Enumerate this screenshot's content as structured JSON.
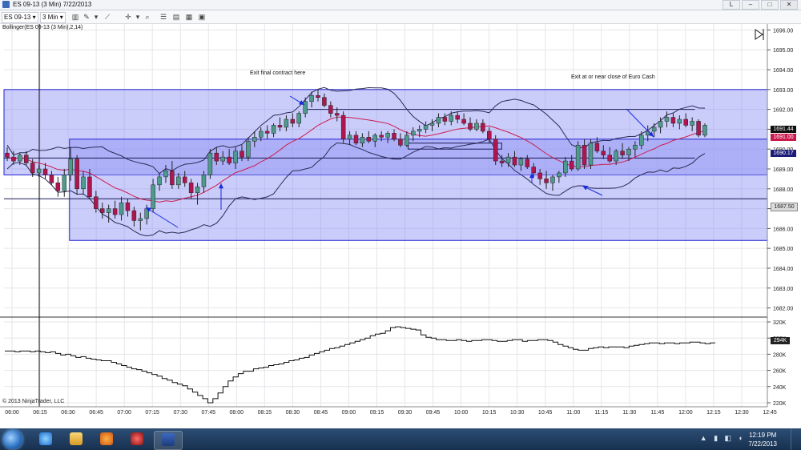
{
  "window": {
    "title": "ES 09-13 (3 Min)  7/22/2013",
    "buttons": [
      "L",
      "–",
      "□",
      "✕"
    ]
  },
  "toolbar": {
    "instrument": "ES 09-13",
    "interval": "3 Min",
    "icons": [
      "chart-style-icon",
      "drawing-tool-icon",
      "crosshair-icon",
      "zoom-icon",
      "properties-icon",
      "indicators-icon",
      "strategies-icon",
      "data-box-icon"
    ]
  },
  "chart": {
    "indicator_label": "Bollinger(ES 09-13 (3 Min),2,14)",
    "copyright": "© 2013 NinjaTrader, LLC",
    "annotations": [
      "Exit final contract here",
      "Exit at or near close of Euro Cash"
    ],
    "price_badges": [
      "1691.44",
      "1691.00",
      "1690.17",
      "1687.50"
    ],
    "colors": {
      "zone": "#8a8ef5",
      "zone_border": "#2222cc",
      "bull": "#4e9a8d",
      "bear": "#b0154f",
      "mid": "#cc1d4f",
      "band": "#2a2a55",
      "arrow": "#1a2bdc"
    }
  },
  "taskbar": {
    "time": "12:19 PM",
    "date": "7/22/2013",
    "apps": [
      "ie-icon",
      "explorer-icon",
      "media-player-icon",
      "recorder-icon",
      "ninjatrader-icon"
    ]
  },
  "chart_data": {
    "type": "candlestick",
    "x_ticks": [
      "06:00",
      "06:15",
      "06:30",
      "06:45",
      "07:00",
      "07:15",
      "07:30",
      "07:45",
      "08:00",
      "08:15",
      "08:30",
      "08:45",
      "09:00",
      "09:15",
      "09:30",
      "09:45",
      "10:00",
      "10:15",
      "10:30",
      "10:45",
      "11:00",
      "11:15",
      "11:30",
      "11:45",
      "12:00",
      "12:15",
      "12:30",
      "12:45"
    ],
    "y_ticks": [
      "1696.00",
      "1695.00",
      "1694.00",
      "1693.00",
      "1692.00",
      "1691.00",
      "1690.00",
      "1689.00",
      "1688.00",
      "1687.00",
      "1686.00",
      "1685.00",
      "1684.00",
      "1683.00",
      "1682.00"
    ],
    "ylim": [
      1681.7,
      1696.3
    ],
    "volume_ticks": [
      "320K",
      "300K",
      "280K",
      "260K",
      "240K",
      "220K"
    ],
    "volume_ylim": [
      215000,
      324000
    ],
    "zones": [
      {
        "from_time": "06:00",
        "to_time": "12:50",
        "low": 1688.7,
        "high": 1693.0
      },
      {
        "from_time": "06:35",
        "to_time": "12:50",
        "low": 1685.4,
        "high": 1690.5
      }
    ],
    "levels": [
      {
        "price": 1692.0,
        "from_time": "08:40",
        "to_time": "12:05"
      },
      {
        "price": 1689.55,
        "from_time": "06:00",
        "to_time": "12:05"
      },
      {
        "price": 1687.5,
        "from_time": "06:00",
        "to_time": "12:50"
      }
    ],
    "candles": [
      [
        1689.8,
        1690.1,
        1689.4,
        1689.6
      ],
      [
        1689.6,
        1689.9,
        1689.2,
        1689.4
      ],
      [
        1689.4,
        1689.8,
        1689.2,
        1689.7
      ],
      [
        1689.7,
        1689.9,
        1689.2,
        1689.3
      ],
      [
        1689.3,
        1689.5,
        1688.6,
        1688.8
      ],
      [
        1688.8,
        1689.2,
        1688.6,
        1689.0
      ],
      [
        1689.0,
        1689.3,
        1688.5,
        1688.7
      ],
      [
        1688.7,
        1688.9,
        1688.2,
        1688.3
      ],
      [
        1688.3,
        1688.6,
        1687.6,
        1687.9
      ],
      [
        1687.9,
        1689.0,
        1687.6,
        1688.7
      ],
      [
        1688.7,
        1690.1,
        1688.4,
        1689.5
      ],
      [
        1689.5,
        1689.7,
        1687.7,
        1688.0
      ],
      [
        1688.0,
        1688.9,
        1687.7,
        1688.6
      ],
      [
        1688.6,
        1689.0,
        1687.5,
        1687.6
      ],
      [
        1687.6,
        1687.9,
        1686.8,
        1687.0
      ],
      [
        1687.0,
        1687.3,
        1686.5,
        1686.8
      ],
      [
        1686.8,
        1687.2,
        1686.3,
        1687.0
      ],
      [
        1687.0,
        1687.4,
        1686.5,
        1686.7
      ],
      [
        1686.7,
        1687.6,
        1686.4,
        1687.3
      ],
      [
        1687.3,
        1687.5,
        1686.6,
        1686.9
      ],
      [
        1686.9,
        1687.1,
        1686.1,
        1686.4
      ],
      [
        1686.4,
        1686.8,
        1685.9,
        1686.5
      ],
      [
        1686.5,
        1687.2,
        1686.2,
        1687.0
      ],
      [
        1687.0,
        1688.5,
        1686.8,
        1688.2
      ],
      [
        1688.2,
        1688.8,
        1687.9,
        1688.6
      ],
      [
        1688.6,
        1689.2,
        1688.3,
        1688.9
      ],
      [
        1688.9,
        1689.4,
        1688.0,
        1688.2
      ],
      [
        1688.2,
        1688.8,
        1688.0,
        1688.6
      ],
      [
        1688.6,
        1688.9,
        1688.1,
        1688.3
      ],
      [
        1688.3,
        1688.5,
        1687.5,
        1687.8
      ],
      [
        1687.8,
        1688.3,
        1687.2,
        1688.1
      ],
      [
        1688.1,
        1688.9,
        1687.8,
        1688.7
      ],
      [
        1688.7,
        1690.0,
        1688.5,
        1689.8
      ],
      [
        1689.8,
        1690.1,
        1689.2,
        1689.4
      ],
      [
        1689.4,
        1689.9,
        1689.2,
        1689.6
      ],
      [
        1689.6,
        1690.0,
        1689.2,
        1689.3
      ],
      [
        1689.3,
        1690.1,
        1689.0,
        1689.9
      ],
      [
        1689.9,
        1690.2,
        1689.4,
        1689.6
      ],
      [
        1689.6,
        1690.6,
        1689.4,
        1690.4
      ],
      [
        1690.4,
        1690.9,
        1690.1,
        1690.6
      ],
      [
        1690.6,
        1691.1,
        1690.4,
        1690.9
      ],
      [
        1690.9,
        1691.2,
        1690.5,
        1690.8
      ],
      [
        1690.8,
        1691.3,
        1690.6,
        1691.2
      ],
      [
        1691.2,
        1691.6,
        1690.9,
        1691.1
      ],
      [
        1691.1,
        1691.7,
        1690.9,
        1691.5
      ],
      [
        1691.5,
        1691.8,
        1691.1,
        1691.3
      ],
      [
        1691.3,
        1691.9,
        1691.1,
        1691.8
      ],
      [
        1691.8,
        1692.6,
        1691.6,
        1692.4
      ],
      [
        1692.4,
        1692.9,
        1692.1,
        1692.7
      ],
      [
        1692.7,
        1693.0,
        1692.4,
        1692.6
      ],
      [
        1692.6,
        1692.8,
        1692.1,
        1692.2
      ],
      [
        1692.2,
        1692.4,
        1691.6,
        1691.8
      ],
      [
        1691.8,
        1692.1,
        1691.4,
        1691.7
      ],
      [
        1691.7,
        1691.9,
        1690.3,
        1690.5
      ],
      [
        1690.5,
        1690.9,
        1690.2,
        1690.7
      ],
      [
        1690.7,
        1690.9,
        1690.2,
        1690.3
      ],
      [
        1690.3,
        1690.8,
        1690.1,
        1690.6
      ],
      [
        1690.6,
        1690.9,
        1690.3,
        1690.4
      ],
      [
        1690.4,
        1690.8,
        1690.1,
        1690.7
      ],
      [
        1690.7,
        1690.9,
        1690.4,
        1690.6
      ],
      [
        1690.6,
        1690.9,
        1690.3,
        1690.8
      ],
      [
        1690.8,
        1691.0,
        1690.4,
        1690.5
      ],
      [
        1690.5,
        1690.8,
        1690.1,
        1690.2
      ],
      [
        1690.2,
        1690.9,
        1690.1,
        1690.7
      ],
      [
        1690.7,
        1691.1,
        1690.4,
        1690.9
      ],
      [
        1690.9,
        1691.2,
        1690.6,
        1691.0
      ],
      [
        1691.0,
        1691.4,
        1690.8,
        1691.2
      ],
      [
        1691.2,
        1691.5,
        1690.9,
        1691.3
      ],
      [
        1691.3,
        1691.8,
        1691.1,
        1691.6
      ],
      [
        1691.6,
        1691.8,
        1691.2,
        1691.4
      ],
      [
        1691.4,
        1691.9,
        1691.2,
        1691.7
      ],
      [
        1691.7,
        1691.9,
        1691.3,
        1691.5
      ],
      [
        1691.5,
        1691.8,
        1691.2,
        1691.3
      ],
      [
        1691.3,
        1691.6,
        1690.9,
        1691.0
      ],
      [
        1691.0,
        1691.5,
        1690.9,
        1691.3
      ],
      [
        1691.3,
        1691.5,
        1690.8,
        1690.9
      ],
      [
        1690.9,
        1691.1,
        1690.3,
        1690.5
      ],
      [
        1690.5,
        1690.7,
        1689.2,
        1689.4
      ],
      [
        1689.4,
        1689.7,
        1689.1,
        1689.3
      ],
      [
        1689.3,
        1689.8,
        1689.1,
        1689.6
      ],
      [
        1689.6,
        1689.9,
        1689.1,
        1689.2
      ],
      [
        1689.2,
        1689.6,
        1688.9,
        1689.5
      ],
      [
        1689.5,
        1689.7,
        1689.0,
        1689.1
      ],
      [
        1689.1,
        1689.3,
        1688.6,
        1688.8
      ],
      [
        1688.8,
        1689.0,
        1688.2,
        1688.5
      ],
      [
        1688.5,
        1688.9,
        1688.0,
        1688.3
      ],
      [
        1688.3,
        1688.7,
        1687.9,
        1688.6
      ],
      [
        1688.6,
        1688.9,
        1688.3,
        1688.8
      ],
      [
        1688.8,
        1689.6,
        1688.6,
        1689.4
      ],
      [
        1689.4,
        1689.7,
        1688.9,
        1689.0
      ],
      [
        1689.0,
        1690.4,
        1688.9,
        1690.2
      ],
      [
        1690.2,
        1690.5,
        1689.0,
        1689.2
      ],
      [
        1689.2,
        1690.5,
        1689.0,
        1690.3
      ],
      [
        1690.3,
        1690.6,
        1689.8,
        1689.9
      ],
      [
        1689.9,
        1690.2,
        1689.5,
        1689.7
      ],
      [
        1689.7,
        1690.1,
        1689.3,
        1689.4
      ],
      [
        1689.4,
        1690.0,
        1689.2,
        1689.9
      ],
      [
        1689.9,
        1690.3,
        1689.5,
        1689.7
      ],
      [
        1689.7,
        1690.1,
        1689.4,
        1690.0
      ],
      [
        1690.0,
        1690.4,
        1689.6,
        1690.2
      ],
      [
        1690.2,
        1690.9,
        1690.0,
        1690.7
      ],
      [
        1690.7,
        1691.2,
        1690.4,
        1690.9
      ],
      [
        1690.9,
        1691.3,
        1690.6,
        1691.1
      ],
      [
        1691.1,
        1691.6,
        1690.8,
        1691.4
      ],
      [
        1691.4,
        1691.9,
        1691.1,
        1691.6
      ],
      [
        1691.6,
        1691.8,
        1691.1,
        1691.3
      ],
      [
        1691.3,
        1691.7,
        1691.0,
        1691.5
      ],
      [
        1691.5,
        1691.8,
        1691.1,
        1691.2
      ],
      [
        1691.2,
        1691.6,
        1690.9,
        1691.4
      ],
      [
        1691.4,
        1691.5,
        1690.6,
        1690.7
      ],
      [
        1690.7,
        1691.3,
        1690.6,
        1691.2
      ]
    ],
    "volume": [
      284,
      284,
      283,
      284,
      284,
      283,
      284,
      283,
      282,
      283,
      281,
      279,
      280,
      278,
      276,
      277,
      275,
      274,
      273,
      272,
      272,
      270,
      268,
      266,
      264,
      262,
      261,
      259,
      257,
      255,
      253,
      250,
      248,
      245,
      243,
      241,
      237,
      233,
      229,
      225,
      220,
      225,
      232,
      240,
      247,
      252,
      256,
      259,
      259,
      262,
      263,
      264,
      266,
      267,
      268,
      270,
      272,
      273,
      275,
      276,
      279,
      281,
      283,
      285,
      287,
      288,
      290,
      292,
      294,
      296,
      298,
      300,
      303,
      305,
      306,
      309,
      313,
      314,
      313,
      312,
      311,
      310,
      304,
      301,
      300,
      298,
      298,
      297,
      297,
      298,
      297,
      296,
      297,
      297,
      298,
      298,
      297,
      296,
      296,
      297,
      298,
      298,
      296,
      297,
      297,
      298,
      298,
      297,
      295,
      292,
      290,
      288,
      286,
      285,
      285,
      287,
      288,
      289,
      288,
      289,
      289,
      289,
      288,
      290,
      291,
      292,
      293,
      294,
      294,
      293,
      294,
      294,
      293,
      294,
      294,
      295,
      295,
      294,
      293,
      294,
      294
    ]
  }
}
